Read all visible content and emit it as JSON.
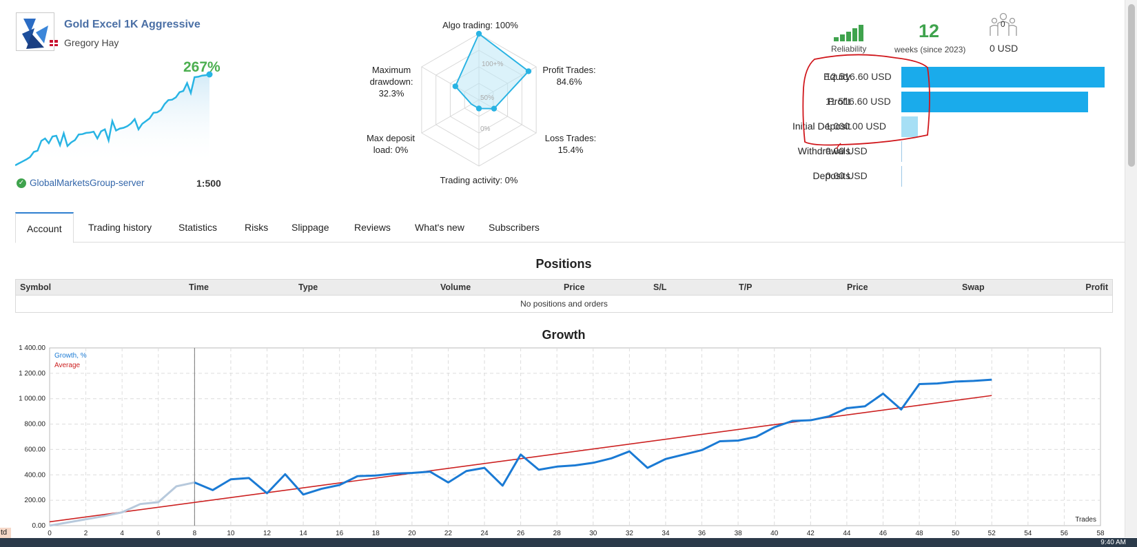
{
  "signal": {
    "title": "Gold Excel 1K Aggressive",
    "author": "Gregory Hay",
    "growth": "267%",
    "server": "GlobalMarketsGroup-server",
    "leverage": "1:500"
  },
  "radar": {
    "algo_trading": "Algo trading: 100%",
    "profit_trades_1": "Profit Trades:",
    "profit_trades_2": "84.6%",
    "loss_trades_1": "Loss Trades:",
    "loss_trades_2": "15.4%",
    "trading_activity": "Trading activity: 0%",
    "max_deposit_1": "Max deposit",
    "max_deposit_2": "load: 0%",
    "max_dd_1": "Maximum",
    "max_dd_2": "drawdown:",
    "max_dd_3": "32.3%",
    "scale_100": "100+%",
    "scale_50": "50%",
    "scale_0": "0%",
    "values": {
      "algo": 100,
      "profit": 84.6,
      "loss": 15.4,
      "activity": 0,
      "deposit_load": 0,
      "drawdown": 32.3
    }
  },
  "stats": {
    "reliability_label": "Reliability",
    "weeks": "12",
    "weeks_label": "weeks (since 2023)",
    "subscribers": "0",
    "subscribers_usd": "0 USD",
    "colors": {
      "green": "#3fa34d",
      "bar": "#1aabeb",
      "bar_light": "#a6dff5",
      "annotation": "#d0161b"
    }
  },
  "finance": [
    {
      "label": "Equity",
      "value": "12 516.60 USD",
      "fraction": 1.0
    },
    {
      "label": "Profit",
      "value": "11 516.60 USD",
      "fraction": 0.92
    },
    {
      "label": "Initial Deposit",
      "value": "1 000.00 USD",
      "fraction": 0.08
    },
    {
      "label": "Withdrawals",
      "value": "0.00 USD",
      "fraction": 0
    },
    {
      "label": "Deposits",
      "value": "0.00 USD",
      "fraction": 0
    }
  ],
  "tabs": [
    "Account",
    "Trading history",
    "Statistics",
    "Risks",
    "Slippage",
    "Reviews",
    "What's new",
    "Subscribers"
  ],
  "positions": {
    "title": "Positions",
    "columns": [
      "Symbol",
      "Time",
      "Type",
      "Volume",
      "Price",
      "S/L",
      "T/P",
      "Price",
      "Swap",
      "Profit"
    ],
    "empty": "No positions and orders"
  },
  "chart_data": {
    "type": "line",
    "title": "Growth",
    "xlabel": "Trades",
    "ylabel": "",
    "xlim": [
      0,
      58
    ],
    "ylim": [
      0,
      1400
    ],
    "x_ticks": [
      0,
      2,
      4,
      6,
      8,
      10,
      12,
      14,
      16,
      18,
      20,
      22,
      24,
      26,
      28,
      30,
      32,
      34,
      36,
      38,
      40,
      42,
      44,
      46,
      48,
      50,
      52,
      54,
      56,
      58
    ],
    "y_ticks": [
      "0.00",
      "200.00",
      "400.00",
      "600.00",
      "800.00",
      "1 000.00",
      "1 200.00",
      "1 400.00"
    ],
    "legend": [
      "Growth, %",
      "Average"
    ],
    "series": [
      {
        "name": "Growth, %",
        "color": "#1a7ad4",
        "pre_color": "#b7c9dc",
        "split_index": 8,
        "x": [
          0,
          1,
          2,
          3,
          4,
          5,
          6,
          7,
          8,
          9,
          10,
          11,
          12,
          13,
          14,
          15,
          16,
          17,
          18,
          19,
          20,
          21,
          22,
          23,
          24,
          25,
          26,
          27,
          28,
          29,
          30,
          31,
          32,
          33,
          34,
          35,
          36,
          37,
          38,
          39,
          40,
          41,
          42,
          43,
          44,
          45,
          46,
          47,
          48,
          49,
          50,
          51,
          52
        ],
        "y": [
          0,
          25,
          50,
          75,
          105,
          170,
          185,
          310,
          340,
          280,
          365,
          375,
          255,
          405,
          245,
          290,
          320,
          390,
          395,
          410,
          415,
          425,
          340,
          430,
          455,
          315,
          560,
          440,
          465,
          475,
          495,
          530,
          585,
          455,
          525,
          560,
          595,
          665,
          670,
          700,
          775,
          825,
          830,
          860,
          925,
          940,
          1040,
          915,
          1115,
          1120,
          1135,
          1140,
          1150
        ]
      },
      {
        "name": "Average",
        "color": "#cc2020",
        "x": [
          0,
          52
        ],
        "y": [
          30,
          1025
        ]
      }
    ]
  },
  "taskbar": {
    "clock": "9:40 AM",
    "edge_text": "td"
  }
}
